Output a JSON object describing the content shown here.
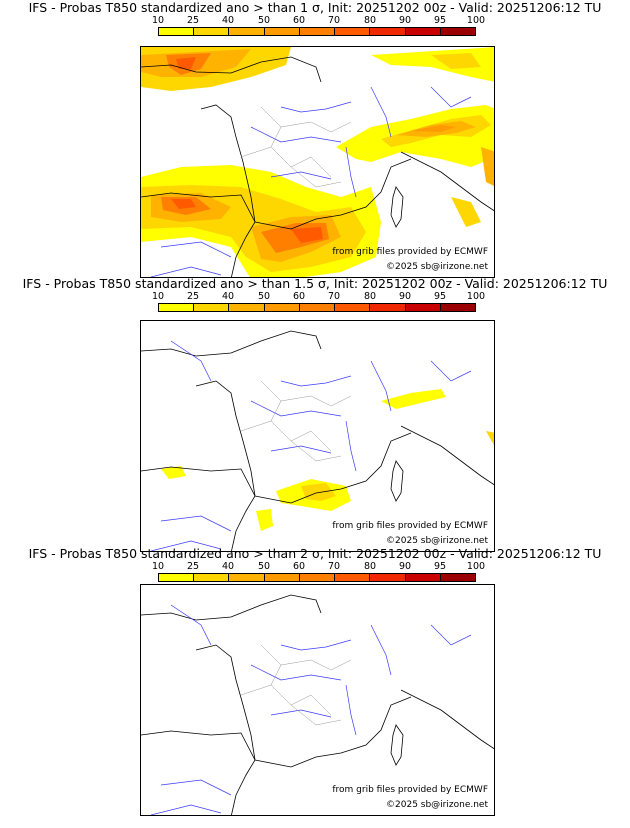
{
  "legend": {
    "labels": [
      "10",
      "25",
      "40",
      "50",
      "60",
      "70",
      "80",
      "90",
      "95",
      "100"
    ],
    "colors": [
      "#ffff00",
      "#ffd700",
      "#ffb300",
      "#ff9b00",
      "#ff7f00",
      "#ff5a00",
      "#f02800",
      "#c80000",
      "#9b0000",
      "#5a0000"
    ]
  },
  "panels": [
    {
      "title": "IFS - Probas T850  standardized ano > than 1 σ, Init: 20251202 00z - Valid: 20251206:12 TU",
      "credit_line1": "from grib files provided by ECMWF",
      "credit_line2": "©2025 sb@irizone.net"
    },
    {
      "title": "IFS - Probas T850  standardized ano > than 1.5 σ, Init: 20251202 00z - Valid: 20251206:12 TU",
      "credit_line1": "from grib files provided by ECMWF",
      "credit_line2": "©2025 sb@irizone.net"
    },
    {
      "title": "IFS - Probas T850  standardized ano > than 2 σ, Init: 20251202 00z - Valid: 20251206:12 TU",
      "credit_line1": "from grib files provided by ECMWF",
      "credit_line2": "©2025 sb@irizone.net"
    }
  ]
}
